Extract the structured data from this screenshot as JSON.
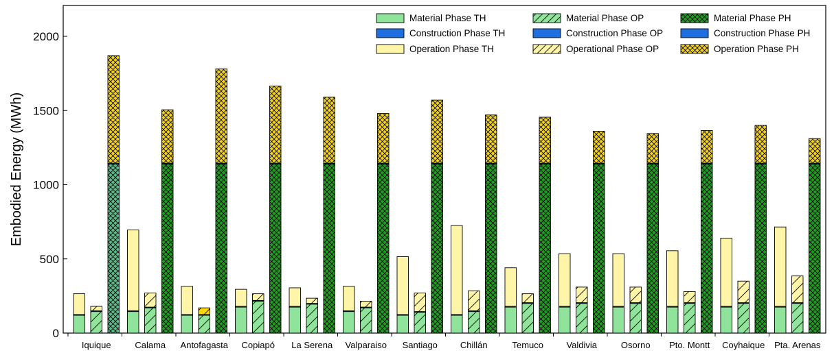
{
  "chart_data": {
    "type": "bar",
    "subtype": "stacked-grouped",
    "ylabel": "Embodied Energy (MWh)",
    "xlabel": "",
    "ylim": [
      0,
      2200
    ],
    "yticks": [
      0,
      500,
      1000,
      1500,
      2000
    ],
    "grid": false,
    "legend_position": "top-right",
    "categories": [
      "Iquique",
      "Calama",
      "Antofagasta",
      "Copiapó",
      "La Serena",
      "Valparaiso",
      "Santiago",
      "Chillán",
      "Temuco",
      "Valdivia",
      "Osorno",
      "Pto. Montt",
      "Coyhaique",
      "Pta. Arenas"
    ],
    "groups": [
      "TH",
      "OP",
      "PH"
    ],
    "phases": [
      "Material",
      "Construction",
      "Operation"
    ],
    "legend": [
      [
        "Material Phase TH",
        "Construction Phase TH",
        "Operation Phase TH"
      ],
      [
        "Material Phase OP",
        "Construction Phase OP",
        "Operational Phase OP"
      ],
      [
        "Material Phase PH",
        "Construction Phase PH",
        "Operation Phase PH"
      ]
    ],
    "series": [
      {
        "group": "TH",
        "phase": "Material",
        "name": "Material Phase TH",
        "values": [
          120,
          145,
          120,
          175,
          175,
          145,
          120,
          120,
          175,
          175,
          175,
          175,
          175,
          175
        ]
      },
      {
        "group": "TH",
        "phase": "Construction",
        "name": "Construction Phase TH",
        "values": [
          5,
          5,
          5,
          5,
          5,
          5,
          5,
          5,
          5,
          5,
          5,
          5,
          5,
          5
        ]
      },
      {
        "group": "TH",
        "phase": "Operation",
        "name": "Operation Phase TH",
        "values": [
          140,
          545,
          190,
          115,
          125,
          165,
          390,
          600,
          260,
          355,
          355,
          375,
          460,
          535
        ]
      },
      {
        "group": "OP",
        "phase": "Material",
        "name": "Material Phase OP",
        "values": [
          145,
          170,
          120,
          215,
          195,
          170,
          140,
          145,
          200,
          200,
          200,
          200,
          200,
          200
        ]
      },
      {
        "group": "OP",
        "phase": "Construction",
        "name": "Construction Phase OP",
        "values": [
          5,
          5,
          5,
          5,
          5,
          5,
          5,
          5,
          5,
          5,
          5,
          5,
          5,
          5
        ]
      },
      {
        "group": "OP",
        "phase": "Operation",
        "name": "Operational Phase OP",
        "values": [
          30,
          95,
          45,
          45,
          35,
          40,
          125,
          135,
          60,
          105,
          105,
          75,
          145,
          180
        ]
      },
      {
        "group": "PH",
        "phase": "Material",
        "name": "Material Phase PH",
        "values": [
          1140,
          1140,
          1140,
          1140,
          1140,
          1140,
          1140,
          1140,
          1140,
          1140,
          1140,
          1140,
          1140,
          1140
        ]
      },
      {
        "group": "PH",
        "phase": "Construction",
        "name": "Construction Phase PH",
        "values": [
          5,
          5,
          5,
          5,
          5,
          5,
          5,
          5,
          5,
          5,
          5,
          5,
          5,
          5
        ]
      },
      {
        "group": "PH",
        "phase": "Operation",
        "name": "Operation Phase PH",
        "values": [
          725,
          360,
          635,
          520,
          445,
          335,
          425,
          325,
          310,
          215,
          200,
          220,
          255,
          165
        ]
      }
    ],
    "colors": {
      "material_th": "#8fe39a",
      "material_op": "#8fe39a",
      "material_ph": "#1f9e1f",
      "construction": "#1f6fe0",
      "operation_th": "#fff5a8",
      "operation_op": "#fff5a8",
      "operation_ph": "#f2d21e",
      "first_ph_material": "#5cb98a",
      "antofagasta_op_operation": "#ffd60a"
    }
  }
}
